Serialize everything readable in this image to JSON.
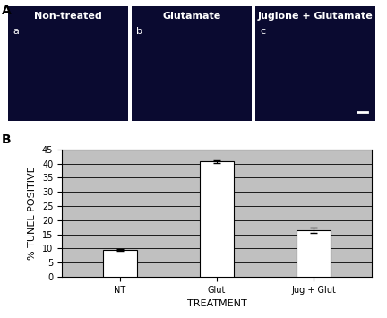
{
  "panel_labels": [
    "A",
    "B"
  ],
  "images": [
    {
      "title": "Non-treated",
      "label": "a"
    },
    {
      "title": "Glutamate",
      "label": "b"
    },
    {
      "title": "Juglone + Glutamate",
      "label": "c"
    }
  ],
  "chart_data": {
    "type": "bar",
    "categories": [
      "NT",
      "Glut",
      "Jug + Glut"
    ],
    "values": [
      9.5,
      40.8,
      16.5
    ],
    "errors": [
      0.3,
      0.5,
      1.0
    ],
    "color": "#ffffff",
    "x_label": "TREATMENT",
    "y_label": "% TUNEL POSITIVE",
    "ylim": [
      0,
      45
    ],
    "yticks": [
      0,
      5,
      10,
      15,
      20,
      25,
      30,
      35,
      40,
      45
    ],
    "grid": true
  }
}
